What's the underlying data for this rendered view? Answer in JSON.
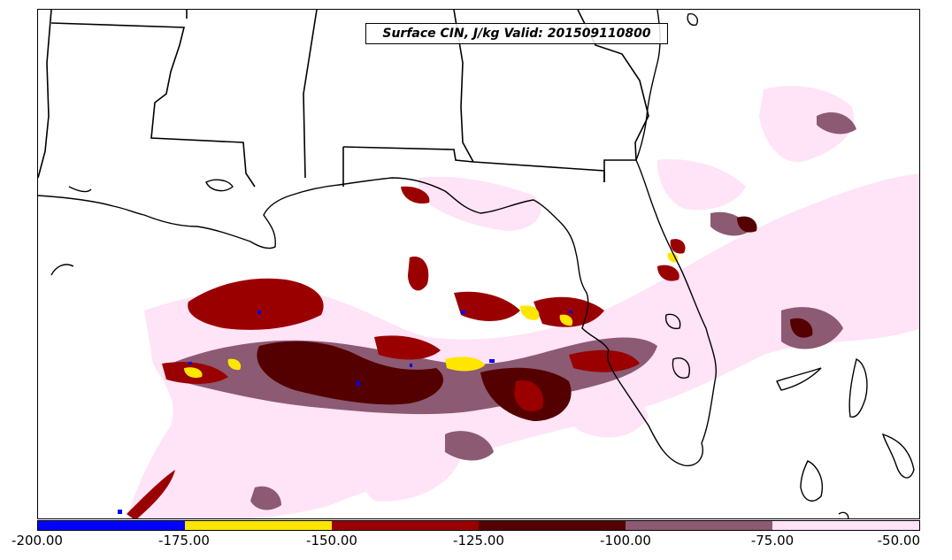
{
  "title": "Surface CIN, J/kg Valid: 201509110800",
  "colorbar": {
    "ticks": [
      "-200.00",
      "-175.00",
      "-150.00",
      "-125.00",
      "-100.00",
      "-75.00",
      "-50.00"
    ],
    "colors": [
      "#0000ff",
      "#ffe600",
      "#9a0000",
      "#550000",
      "#8c5a72",
      "#ffe3f6"
    ]
  }
}
